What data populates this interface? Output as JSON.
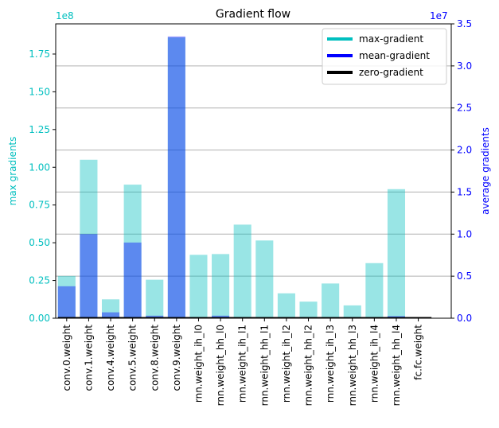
{
  "chart_data": {
    "type": "bar",
    "title": "Gradient flow",
    "categories": [
      "conv.0.weight",
      "conv.1.weight",
      "conv.4.weight",
      "conv.5.weight",
      "conv.8.weight",
      "conv.9.weight",
      "rnn.weight_ih_l0",
      "rnn.weight_hh_l0",
      "rnn.weight_ih_l1",
      "rnn.weight_hh_l1",
      "rnn.weight_ih_l2",
      "rnn.weight_hh_l2",
      "rnn.weight_ih_l3",
      "rnn.weight_hh_l3",
      "rnn.weight_ih_l4",
      "rnn.weight_hh_l4",
      "fc.fc.weight"
    ],
    "left_axis": {
      "label": "max gradients",
      "offset_text": "1e8",
      "ylim": [
        0,
        1.95
      ],
      "ticks": [
        0.0,
        0.25,
        0.5,
        0.75,
        1.0,
        1.25,
        1.5,
        1.75
      ],
      "tick_labels": [
        "0.00",
        "0.25",
        "0.50",
        "0.75",
        "1.00",
        "1.25",
        "1.50",
        "1.75"
      ],
      "color": "#00bfbf"
    },
    "right_axis": {
      "label": "average gradients",
      "offset_text": "1e7",
      "ylim": [
        0,
        3.5
      ],
      "ticks": [
        0.0,
        0.5,
        1.0,
        1.5,
        2.0,
        2.5,
        3.0,
        3.5
      ],
      "tick_labels": [
        "0.0",
        "0.5",
        "1.0",
        "1.5",
        "2.0",
        "2.5",
        "3.0",
        "3.5"
      ],
      "color": "#0000ff"
    },
    "series": [
      {
        "axis": "left",
        "color": "#00bfbf",
        "values": [
          0.28,
          1.05,
          0.125,
          0.885,
          0.255,
          1.86,
          0.42,
          0.425,
          0.62,
          0.515,
          0.165,
          0.11,
          0.23,
          0.085,
          0.365,
          0.855,
          0.0
        ]
      },
      {
        "axis": "right",
        "color": "#0000ff",
        "values": [
          0.38,
          1.0,
          0.07,
          0.9,
          0.03,
          3.35,
          0.0,
          0.03,
          0.01,
          0.01,
          0.01,
          0.0,
          0.01,
          0.0,
          0.01,
          0.025,
          0.0
        ]
      },
      {
        "axis": "right",
        "color": "#000000",
        "values": [
          0,
          0,
          0,
          0,
          0,
          0,
          0,
          0,
          0,
          0,
          0,
          0,
          0,
          0,
          0,
          0,
          0
        ]
      }
    ],
    "right_grid_ticks": [
      0.5,
      1.0,
      1.5,
      2.0,
      2.5,
      3.0,
      3.5
    ],
    "legend": {
      "placement": "top-right",
      "entries": [
        {
          "label": "max-gradient",
          "color": "#00bfbf"
        },
        {
          "label": "mean-gradient",
          "color": "#0000ff"
        },
        {
          "label": "zero-gradient",
          "color": "#000000"
        }
      ]
    }
  }
}
